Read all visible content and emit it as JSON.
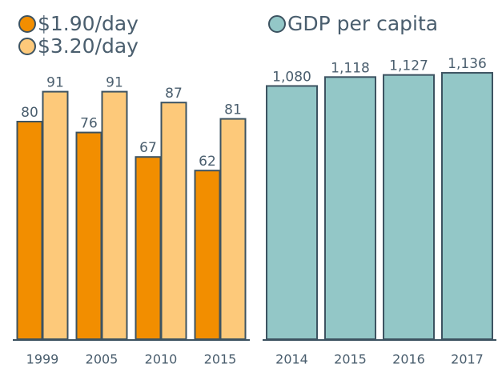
{
  "chart_data": [
    {
      "type": "bar",
      "categories": [
        "1999",
        "2005",
        "2010",
        "2015"
      ],
      "series": [
        {
          "name": "$1.90/day",
          "color": "#f28e00",
          "values": [
            80,
            76,
            67,
            62
          ]
        },
        {
          "name": "$3.20/day",
          "color": "#fdc97a",
          "values": [
            91,
            91,
            87,
            81
          ]
        }
      ],
      "ylim": [
        0,
        100
      ]
    },
    {
      "type": "bar",
      "categories": [
        "2014",
        "2015",
        "2016",
        "2017"
      ],
      "series": [
        {
          "name": "GDP per capita",
          "color": "#93c7c7",
          "values": [
            1080,
            1118,
            1127,
            1136
          ],
          "value_labels": [
            "1,080",
            "1,118",
            "1,127",
            "1,136"
          ]
        }
      ],
      "ylim": [
        0,
        1160
      ]
    }
  ]
}
